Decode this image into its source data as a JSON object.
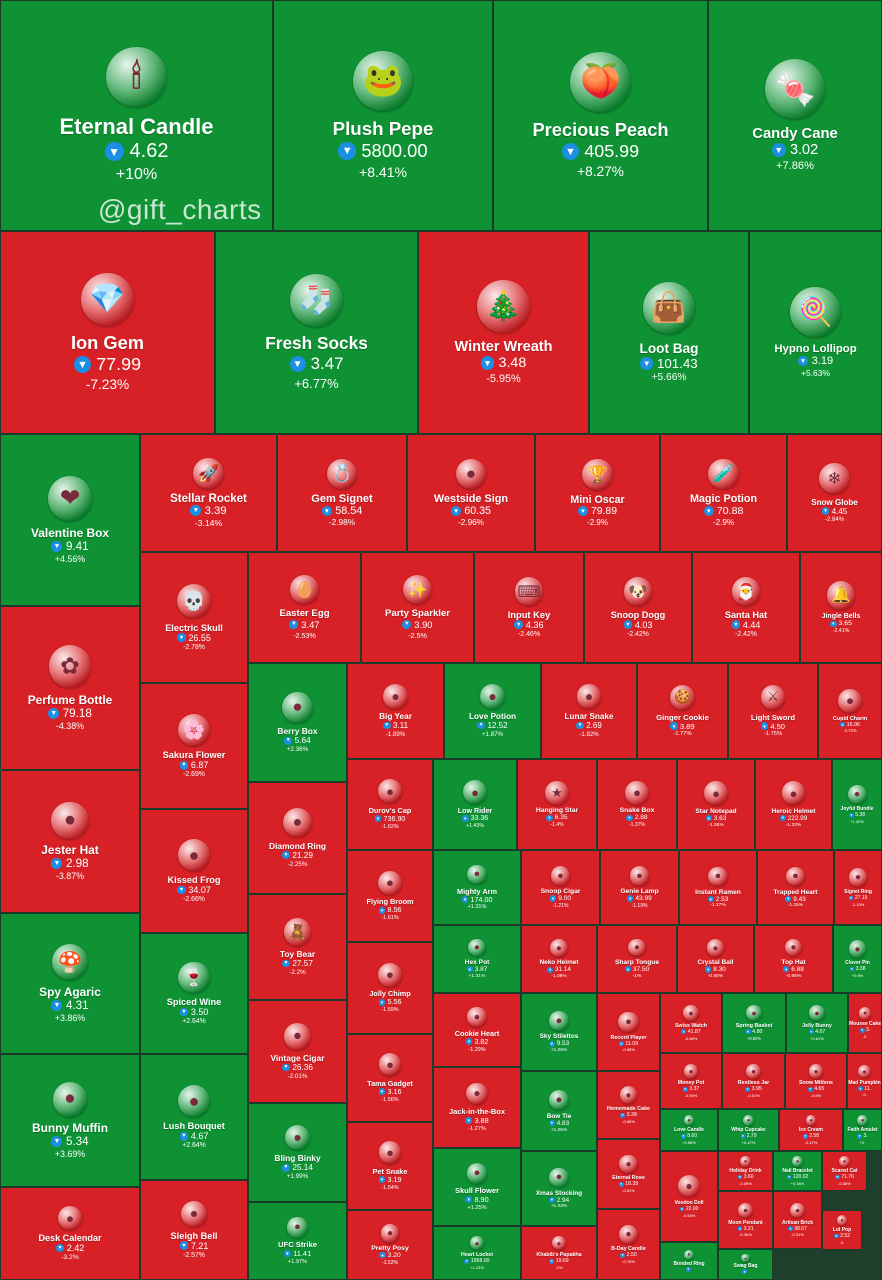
{
  "watermark": "@gift_charts",
  "colors": {
    "up": "#0e9234",
    "down": "#d72126",
    "ton": "#1a8fe3",
    "border": "#1b3a2a"
  },
  "chart_data": {
    "type": "treemap",
    "title": "",
    "currency_icon": "ton-icon",
    "items": [
      {
        "name": "Eternal Candle",
        "price": "4.62",
        "change": "+10%",
        "dir": "up",
        "icon": "candle-icon"
      },
      {
        "name": "Plush Pepe",
        "price": "5800.00",
        "change": "+8.41%",
        "dir": "up",
        "icon": "frog-plush-icon"
      },
      {
        "name": "Precious Peach",
        "price": "405.99",
        "change": "+8.27%",
        "dir": "up",
        "icon": "peach-icon"
      },
      {
        "name": "Candy Cane",
        "price": "3.02",
        "change": "+7.86%",
        "dir": "up",
        "icon": "candy-cane-icon"
      },
      {
        "name": "Ion Gem",
        "price": "77.99",
        "change": "-7.23%",
        "dir": "down",
        "icon": "gem-icon"
      },
      {
        "name": "Fresh Socks",
        "price": "3.47",
        "change": "+6.77%",
        "dir": "up",
        "icon": "socks-icon"
      },
      {
        "name": "Winter Wreath",
        "price": "3.48",
        "change": "-5.95%",
        "dir": "down",
        "icon": "wreath-icon"
      },
      {
        "name": "Loot Bag",
        "price": "101.43",
        "change": "+5.66%",
        "dir": "up",
        "icon": "bag-icon"
      },
      {
        "name": "Hypno Lollipop",
        "price": "3.19",
        "change": "+5.63%",
        "dir": "up",
        "icon": "lollipop-icon"
      },
      {
        "name": "Valentine Box",
        "price": "9.41",
        "change": "+4.56%",
        "dir": "up",
        "icon": "heart-box-icon"
      },
      {
        "name": "Stellar Rocket",
        "price": "3.39",
        "change": "-3.14%",
        "dir": "down",
        "icon": "rocket-icon"
      },
      {
        "name": "Gem Signet",
        "price": "58.54",
        "change": "-2.98%",
        "dir": "down",
        "icon": "ring-icon"
      },
      {
        "name": "Westside Sign",
        "price": "60.35",
        "change": "-2.96%",
        "dir": "down",
        "icon": "hand-sign-icon"
      },
      {
        "name": "Mini Oscar",
        "price": "79.89",
        "change": "-2.9%",
        "dir": "down",
        "icon": "trophy-icon"
      },
      {
        "name": "Magic Potion",
        "price": "70.88",
        "change": "-2.9%",
        "dir": "down",
        "icon": "potion-icon"
      },
      {
        "name": "Snow Globe",
        "price": "4.45",
        "change": "-2.84%",
        "dir": "down",
        "icon": "snow-globe-icon"
      },
      {
        "name": "Perfume Bottle",
        "price": "79.18",
        "change": "-4.38%",
        "dir": "down",
        "icon": "perfume-icon"
      },
      {
        "name": "Electric Skull",
        "price": "26.55",
        "change": "-2.78%",
        "dir": "down",
        "icon": "skull-icon"
      },
      {
        "name": "Easter Egg",
        "price": "3.47",
        "change": "-2.53%",
        "dir": "down",
        "icon": "egg-icon"
      },
      {
        "name": "Party Sparkler",
        "price": "3.90",
        "change": "-2.5%",
        "dir": "down",
        "icon": "sparkler-icon"
      },
      {
        "name": "Input Key",
        "price": "4.36",
        "change": "-2.46%",
        "dir": "down",
        "icon": "key-icon"
      },
      {
        "name": "Snoop Dogg",
        "price": "4.03",
        "change": "-2.42%",
        "dir": "down",
        "icon": "dog-icon"
      },
      {
        "name": "Santa Hat",
        "price": "4.44",
        "change": "-2.42%",
        "dir": "down",
        "icon": "santa-hat-icon"
      },
      {
        "name": "Jingle Bells",
        "price": "3.65",
        "change": "-2.41%",
        "dir": "down",
        "icon": "bells-icon"
      },
      {
        "name": "Sakura Flower",
        "price": "6.87",
        "change": "-2.69%",
        "dir": "down",
        "icon": "flower-icon"
      },
      {
        "name": "Berry Box",
        "price": "5.64",
        "change": "+2.36%",
        "dir": "up",
        "icon": "berry-box-icon"
      },
      {
        "name": "Big Year",
        "price": "3.11",
        "change": "-1.89%",
        "dir": "down",
        "icon": "year-icon"
      },
      {
        "name": "Love Potion",
        "price": "12.52",
        "change": "+1.87%",
        "dir": "up",
        "icon": "love-potion-icon"
      },
      {
        "name": "Lunar Snake",
        "price": "2.69",
        "change": "-1.82%",
        "dir": "down",
        "icon": "snake-cake-icon"
      },
      {
        "name": "Ginger Cookie",
        "price": "3.89",
        "change": "-1.77%",
        "dir": "down",
        "icon": "cookie-icon"
      },
      {
        "name": "Light Sword",
        "price": "4.50",
        "change": "-1.75%",
        "dir": "down",
        "icon": "sword-icon"
      },
      {
        "name": "Cupid Charm",
        "price": "16.96",
        "change": "-1.74%",
        "dir": "down",
        "icon": "cupid-icon"
      },
      {
        "name": "Jester Hat",
        "price": "2.98",
        "change": "-3.87%",
        "dir": "down",
        "icon": "jester-hat-icon"
      },
      {
        "name": "Kissed Frog",
        "price": "34.07",
        "change": "-2.66%",
        "dir": "down",
        "icon": "frog-icon"
      },
      {
        "name": "Diamond Ring",
        "price": "21.29",
        "change": "-2.25%",
        "dir": "down",
        "icon": "ring-box-icon"
      },
      {
        "name": "Durov's Cap",
        "price": "736.90",
        "change": "-1.62%",
        "dir": "down",
        "icon": "cap-icon"
      },
      {
        "name": "Low Rider",
        "price": "33.36",
        "change": "+1.43%",
        "dir": "up",
        "icon": "car-icon"
      },
      {
        "name": "Hanging Star",
        "price": "6.35",
        "change": "-1.4%",
        "dir": "down",
        "icon": "star-icon"
      },
      {
        "name": "Snake Box",
        "price": "2.88",
        "change": "-1.37%",
        "dir": "down",
        "icon": "gift-box-icon"
      },
      {
        "name": "Star Notepad",
        "price": "3.63",
        "change": "-1.36%",
        "dir": "down",
        "icon": "notepad-icon"
      },
      {
        "name": "Heroic Helmet",
        "price": "222.99",
        "change": "-1.33%",
        "dir": "down",
        "icon": "helmet-icon"
      },
      {
        "name": "Joyful Bundle",
        "price": "5.38",
        "change": "+1.32%",
        "dir": "up",
        "icon": "bundle-icon"
      },
      {
        "name": "Spy Agaric",
        "price": "4.31",
        "change": "+3.86%",
        "dir": "up",
        "icon": "mushroom-icon"
      },
      {
        "name": "Spiced Wine",
        "price": "3.50",
        "change": "+2.64%",
        "dir": "up",
        "icon": "wine-icon"
      },
      {
        "name": "Toy Bear",
        "price": "27.57",
        "change": "-2.2%",
        "dir": "down",
        "icon": "bear-icon"
      },
      {
        "name": "Flying Broom",
        "price": "8.56",
        "change": "-1.61%",
        "dir": "down",
        "icon": "broom-icon"
      },
      {
        "name": "Mighty Arm",
        "price": "174.00",
        "change": "+1.31%",
        "dir": "up",
        "icon": "arm-icon"
      },
      {
        "name": "Snoop Cigar",
        "price": "9.00",
        "change": "-1.21%",
        "dir": "down",
        "icon": "cigar-icon"
      },
      {
        "name": "Genie Lamp",
        "price": "43.99",
        "change": "-1.19%",
        "dir": "down",
        "icon": "lamp-icon"
      },
      {
        "name": "Instant Ramen",
        "price": "2.53",
        "change": "-1.17%",
        "dir": "down",
        "icon": "ramen-icon"
      },
      {
        "name": "Trapped Heart",
        "price": "9.43",
        "change": "-1.15%",
        "dir": "down",
        "icon": "trapped-heart-icon"
      },
      {
        "name": "Signet Ring",
        "price": "27.15",
        "change": "-1.13%",
        "dir": "down",
        "icon": "signet-icon"
      },
      {
        "name": "Hex Pot",
        "price": "3.87",
        "change": "+1.31%",
        "dir": "up",
        "icon": "pot-icon"
      },
      {
        "name": "Neko Helmet",
        "price": "31.14",
        "change": "-1.08%",
        "dir": "down",
        "icon": "neko-icon"
      },
      {
        "name": "Sharp Tongue",
        "price": "37.50",
        "change": "-1%",
        "dir": "down",
        "icon": "tongue-icon"
      },
      {
        "name": "Crystal Ball",
        "price": "8.30",
        "change": "-0.95%",
        "dir": "down",
        "icon": "crystal-ball-icon"
      },
      {
        "name": "Top Hat",
        "price": "6.88",
        "change": "-0.95%",
        "dir": "down",
        "icon": "top-hat-icon"
      },
      {
        "name": "Clover Pin",
        "price": "3.38",
        "change": "+0.9%",
        "dir": "up",
        "icon": "clover-icon"
      },
      {
        "name": "Vintage Cigar",
        "price": "26.36",
        "change": "-2.01%",
        "dir": "down",
        "icon": "vintage-cigar-icon"
      },
      {
        "name": "Jolly Chimp",
        "price": "5.56",
        "change": "-1.59%",
        "dir": "down",
        "icon": "chimp-icon"
      },
      {
        "name": "Cookie Heart",
        "price": "3.82",
        "change": "-1.29%",
        "dir": "down",
        "icon": "cookie-heart-icon"
      },
      {
        "name": "Sky Stilettos",
        "price": "9.53",
        "change": "+1.06%",
        "dir": "up",
        "icon": "shoe-icon"
      },
      {
        "name": "Record Player",
        "price": "11.09",
        "change": "-0.88%",
        "dir": "down",
        "icon": "record-icon"
      },
      {
        "name": "Swiss Watch",
        "price": "41.87",
        "change": "-0.86%",
        "dir": "down",
        "icon": "watch-icon"
      },
      {
        "name": "Spring Basket",
        "price": "4.80",
        "change": "+0.82%",
        "dir": "up",
        "icon": "basket-icon"
      },
      {
        "name": "Jelly Bunny",
        "price": "4.67",
        "change": "+0.81%",
        "dir": "up",
        "icon": "bunny-icon"
      },
      {
        "name": "Mousse Cake",
        "price": "3.",
        "change": "-0.",
        "dir": "down",
        "icon": "cake-icon"
      },
      {
        "name": "Bunny Muffin",
        "price": "5.34",
        "change": "+3.69%",
        "dir": "up",
        "icon": "muffin-icon"
      },
      {
        "name": "Lush Bouquet",
        "price": "4.67",
        "change": "+2.64%",
        "dir": "up",
        "icon": "bouquet-icon"
      },
      {
        "name": "Tama Gadget",
        "price": "3.16",
        "change": "-1.56%",
        "dir": "down",
        "icon": "gadget-icon"
      },
      {
        "name": "Jack-in-the-Box",
        "price": "3.88",
        "change": "-1.27%",
        "dir": "down",
        "icon": "jack-box-icon"
      },
      {
        "name": "Bow Tie",
        "price": "4.83",
        "change": "+1.05%",
        "dir": "up",
        "icon": "bow-tie-icon"
      },
      {
        "name": "Homemade Cake",
        "price": "3.38",
        "change": "-0.86%",
        "dir": "down",
        "icon": "home-cake-icon"
      },
      {
        "name": "Money Pot",
        "price": "3.37",
        "change": "-0.59%",
        "dir": "down",
        "icon": "money-pot-icon"
      },
      {
        "name": "Restless Jar",
        "price": "3.95",
        "change": "-0.51%",
        "dir": "down",
        "icon": "jar-icon"
      },
      {
        "name": "Snow Mittens",
        "price": "4.65",
        "change": "-0.5%",
        "dir": "down",
        "icon": "mittens-icon"
      },
      {
        "name": "Mad Pumpkin",
        "price": "11.",
        "change": "-0.",
        "dir": "down",
        "icon": "pumpkin-icon"
      },
      {
        "name": "Bling Binky",
        "price": "25.14",
        "change": "+1.99%",
        "dir": "up",
        "icon": "pacifier-icon"
      },
      {
        "name": "Pet Snake",
        "price": "3.19",
        "change": "-1.54%",
        "dir": "down",
        "icon": "pet-snake-icon"
      },
      {
        "name": "Skull Flower",
        "price": "8.90",
        "change": "+1.25%",
        "dir": "up",
        "icon": "skull-flower-icon"
      },
      {
        "name": "Xmas Stocking",
        "price": "2.94",
        "change": "+1.03%",
        "dir": "up",
        "icon": "stocking-icon"
      },
      {
        "name": "Eternal Rose",
        "price": "18.39",
        "change": "-0.81%",
        "dir": "down",
        "icon": "rose-icon"
      },
      {
        "name": "Love Candle",
        "price": "8.60",
        "change": "+0.58%",
        "dir": "up",
        "icon": "love-candle-icon"
      },
      {
        "name": "Whip Cupcake",
        "price": "2.79",
        "change": "+0.47%",
        "dir": "up",
        "icon": "cupcake-icon"
      },
      {
        "name": "Ice Cream",
        "price": "2.58",
        "change": "-0.47%",
        "dir": "down",
        "icon": "ice-cream-icon"
      },
      {
        "name": "Faith Amulet",
        "price": "3.",
        "change": "+0.",
        "dir": "up",
        "icon": "amulet-icon"
      },
      {
        "name": "Holiday Drink",
        "price": "3.60",
        "change": "-0.39%",
        "dir": "down",
        "icon": "drink-icon"
      },
      {
        "name": "Nail Bracelet",
        "price": "120.02",
        "change": "+0.38%",
        "dir": "up",
        "icon": "bracelet-icon"
      },
      {
        "name": "Scared Cat",
        "price": "71.76",
        "change": "-0.36%",
        "dir": "down",
        "icon": "cat-icon"
      },
      {
        "name": "Desk Calendar",
        "price": "2.42",
        "change": "-3.2%",
        "dir": "down",
        "icon": "calendar-icon"
      },
      {
        "name": "Sleigh Bell",
        "price": "7.21",
        "change": "-2.57%",
        "dir": "down",
        "icon": "sleigh-bell-icon"
      },
      {
        "name": "UFC Strike",
        "price": "11.41",
        "change": "+1.97%",
        "dir": "up",
        "icon": "glove-icon"
      },
      {
        "name": "Pretty Posy",
        "price": "3.20",
        "change": "-1.52%",
        "dir": "down",
        "icon": "posy-icon"
      },
      {
        "name": "Heart Locket",
        "price": "1968.00",
        "change": "+1.23%",
        "dir": "up",
        "icon": "locket-icon"
      },
      {
        "name": "Khabib's Papakha",
        "price": "19.69",
        "change": "-1%",
        "dir": "down",
        "icon": "papakha-icon"
      },
      {
        "name": "B-Day Candle",
        "price": "2.50",
        "change": "-0.78%",
        "dir": "down",
        "icon": "bday-candle-icon"
      },
      {
        "name": "Voodoo Doll",
        "price": "22.00",
        "change": "-0.54%",
        "dir": "down",
        "icon": "voodoo-icon"
      },
      {
        "name": "Bonded Ring",
        "price": "",
        "change": "",
        "dir": "up",
        "icon": "bonded-ring-icon"
      },
      {
        "name": "Moon Pendant",
        "price": "3.31",
        "change": "-0.36%",
        "dir": "down",
        "icon": "moon-icon"
      },
      {
        "name": "Artisan Brick",
        "price": "98.67",
        "change": "-0.31%",
        "dir": "down",
        "icon": "brick-icon"
      },
      {
        "name": "Lol Pop",
        "price": "2.52",
        "change": "-0.",
        "dir": "down",
        "icon": "lol-pop-icon"
      },
      {
        "name": "Swag Bag",
        "price": "",
        "change": "",
        "dir": "up",
        "icon": "swag-bag-icon"
      }
    ]
  }
}
